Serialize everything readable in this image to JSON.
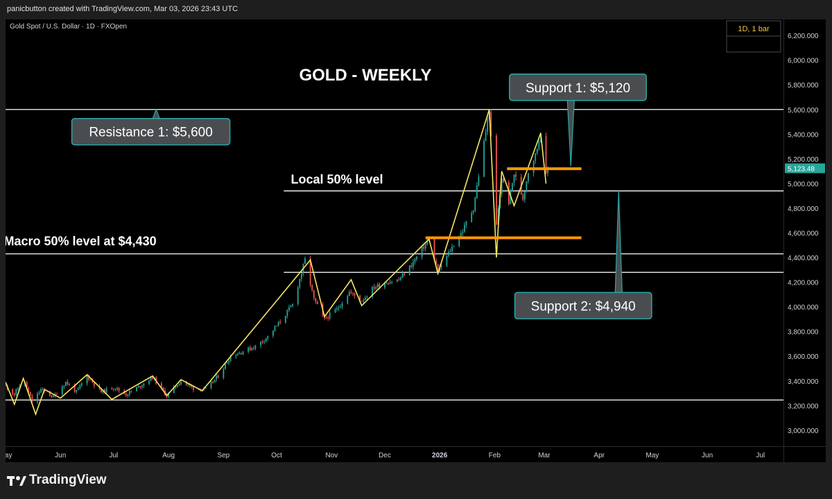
{
  "header": {
    "attribution": "panicbutton created with TradingView.com, Mar 03, 2026 23:43 UTC"
  },
  "footer": {
    "brand": "TradingView",
    "logo_icon": "tradingview-logo-icon"
  },
  "colors": {
    "background": "#000000",
    "line": "#f2f2f2",
    "level": "#ffffff",
    "candle_up": "#26a69a",
    "candle_down": "#ef5350",
    "zigzag": "#f5e663",
    "support_zone": "#ff9800",
    "callout_fill": "#4a4d50",
    "callout_border": "#2aa7a7",
    "price_badge": "#26a69a",
    "interval_text": "#f5c542"
  },
  "chart_data": {
    "type": "candlestick",
    "symbol_line": "Gold Spot / U.S. Dollar · 1D · FXOpen",
    "title": "GOLD  -  WEEKLY",
    "interval_label": "1D, 1 bar",
    "last_price": 5123.48,
    "last_price_label": "5,123.48",
    "y_axis": {
      "range": [
        2870,
        6330
      ],
      "ticks": [
        6200,
        6000,
        5800,
        5600,
        5400,
        5200,
        5000,
        4800,
        4600,
        4400,
        4200,
        4000,
        3800,
        3600,
        3400,
        3200,
        3000
      ],
      "tick_labels": [
        "6,200.000",
        "6,000.000",
        "5,800.000",
        "5,600.000",
        "5,400.000",
        "5,200.000",
        "5,000.000",
        "4,800.000",
        "4,600.000",
        "4,400.000",
        "4,200.000",
        "4,000.000",
        "3,800.000",
        "3,600.000",
        "3,400.000",
        "3,200.000",
        "3,000.000"
      ]
    },
    "x_axis": {
      "range": [
        "2025-05-01",
        "2026-07-14"
      ],
      "ticks": [
        {
          "date": "2025-05-01",
          "label": "May",
          "bold": false
        },
        {
          "date": "2025-06-01",
          "label": "Jun",
          "bold": false
        },
        {
          "date": "2025-07-01",
          "label": "Jul",
          "bold": false
        },
        {
          "date": "2025-08-01",
          "label": "Aug",
          "bold": false
        },
        {
          "date": "2025-09-01",
          "label": "Sep",
          "bold": false
        },
        {
          "date": "2025-10-01",
          "label": "Oct",
          "bold": false
        },
        {
          "date": "2025-11-01",
          "label": "Nov",
          "bold": false
        },
        {
          "date": "2025-12-01",
          "label": "Dec",
          "bold": false
        },
        {
          "date": "2026-01-01",
          "label": "2026",
          "bold": true
        },
        {
          "date": "2026-02-01",
          "label": "Feb",
          "bold": false
        },
        {
          "date": "2026-03-01",
          "label": "Mar",
          "bold": false
        },
        {
          "date": "2026-04-01",
          "label": "Apr",
          "bold": false
        },
        {
          "date": "2026-05-01",
          "label": "May",
          "bold": false
        },
        {
          "date": "2026-06-01",
          "label": "Jun",
          "bold": false
        },
        {
          "date": "2026-07-01",
          "label": "Jul",
          "bold": false
        }
      ]
    },
    "price_path": [
      {
        "date": "2025-05-01",
        "price": 3360
      },
      {
        "date": "2025-05-06",
        "price": 3290
      },
      {
        "date": "2025-05-11",
        "price": 3420
      },
      {
        "date": "2025-05-16",
        "price": 3230
      },
      {
        "date": "2025-05-21",
        "price": 3330
      },
      {
        "date": "2025-05-28",
        "price": 3270
      },
      {
        "date": "2025-06-04",
        "price": 3390
      },
      {
        "date": "2025-06-10",
        "price": 3310
      },
      {
        "date": "2025-06-16",
        "price": 3440
      },
      {
        "date": "2025-06-24",
        "price": 3310
      },
      {
        "date": "2025-07-01",
        "price": 3350
      },
      {
        "date": "2025-07-08",
        "price": 3290
      },
      {
        "date": "2025-07-15",
        "price": 3350
      },
      {
        "date": "2025-07-23",
        "price": 3430
      },
      {
        "date": "2025-07-31",
        "price": 3280
      },
      {
        "date": "2025-08-08",
        "price": 3400
      },
      {
        "date": "2025-08-15",
        "price": 3340
      },
      {
        "date": "2025-08-22",
        "price": 3330
      },
      {
        "date": "2025-08-29",
        "price": 3440
      },
      {
        "date": "2025-09-05",
        "price": 3600
      },
      {
        "date": "2025-09-12",
        "price": 3640
      },
      {
        "date": "2025-09-19",
        "price": 3680
      },
      {
        "date": "2025-09-26",
        "price": 3760
      },
      {
        "date": "2025-10-03",
        "price": 3880
      },
      {
        "date": "2025-10-10",
        "price": 4020
      },
      {
        "date": "2025-10-17",
        "price": 4380
      },
      {
        "date": "2025-10-22",
        "price": 4060
      },
      {
        "date": "2025-10-28",
        "price": 3900
      },
      {
        "date": "2025-11-04",
        "price": 3980
      },
      {
        "date": "2025-11-11",
        "price": 4120
      },
      {
        "date": "2025-11-18",
        "price": 4050
      },
      {
        "date": "2025-11-25",
        "price": 4160
      },
      {
        "date": "2025-12-02",
        "price": 4200
      },
      {
        "date": "2025-12-09",
        "price": 4220
      },
      {
        "date": "2025-12-16",
        "price": 4340
      },
      {
        "date": "2025-12-26",
        "price": 4550
      },
      {
        "date": "2025-12-31",
        "price": 4280
      },
      {
        "date": "2026-01-07",
        "price": 4460
      },
      {
        "date": "2026-01-14",
        "price": 4620
      },
      {
        "date": "2026-01-20",
        "price": 4800
      },
      {
        "date": "2026-01-29",
        "price": 5600
      },
      {
        "date": "2026-02-02",
        "price": 4660
      },
      {
        "date": "2026-02-05",
        "price": 5050
      },
      {
        "date": "2026-02-09",
        "price": 4850
      },
      {
        "date": "2026-02-12",
        "price": 5080
      },
      {
        "date": "2026-02-17",
        "price": 4880
      },
      {
        "date": "2026-02-20",
        "price": 5100
      },
      {
        "date": "2026-02-24",
        "price": 5230
      },
      {
        "date": "2026-02-27",
        "price": 5410
      },
      {
        "date": "2026-03-02",
        "price": 5060
      },
      {
        "date": "2026-03-03",
        "price": 5123
      }
    ],
    "zigzag_path": [
      {
        "date": "2025-05-01",
        "price": 3390
      },
      {
        "date": "2025-05-06",
        "price": 3210
      },
      {
        "date": "2025-05-11",
        "price": 3420
      },
      {
        "date": "2025-05-18",
        "price": 3130
      },
      {
        "date": "2025-05-23",
        "price": 3330
      },
      {
        "date": "2025-06-01",
        "price": 3260
      },
      {
        "date": "2025-06-16",
        "price": 3450
      },
      {
        "date": "2025-06-30",
        "price": 3250
      },
      {
        "date": "2025-07-23",
        "price": 3440
      },
      {
        "date": "2025-07-31",
        "price": 3280
      },
      {
        "date": "2025-08-08",
        "price": 3410
      },
      {
        "date": "2025-08-20",
        "price": 3320
      },
      {
        "date": "2025-10-20",
        "price": 4380
      },
      {
        "date": "2025-10-28",
        "price": 3920
      },
      {
        "date": "2025-11-12",
        "price": 4220
      },
      {
        "date": "2025-11-18",
        "price": 4010
      },
      {
        "date": "2025-12-26",
        "price": 4550
      },
      {
        "date": "2025-12-31",
        "price": 4270
      },
      {
        "date": "2026-01-29",
        "price": 5600
      },
      {
        "date": "2026-02-02",
        "price": 4400
      },
      {
        "date": "2026-02-05",
        "price": 5100
      },
      {
        "date": "2026-02-12",
        "price": 4820
      },
      {
        "date": "2026-02-27",
        "price": 5410
      },
      {
        "date": "2026-03-02",
        "price": 5000
      }
    ],
    "horizontal_levels": [
      {
        "name": "resistance-1-line",
        "price": 5600,
        "from": "2025-05-01",
        "to": "2026-07-14"
      },
      {
        "name": "local-50-line",
        "price": 4940,
        "from": "2025-10-05",
        "to": "2026-07-14"
      },
      {
        "name": "macro-50-line",
        "price": 4430,
        "from": "2025-05-01",
        "to": "2026-07-14"
      },
      {
        "name": "range-low-line",
        "price": 4280,
        "from": "2025-10-05",
        "to": "2026-07-14"
      },
      {
        "name": "base-line",
        "price": 3245,
        "from": "2025-05-01",
        "to": "2026-07-14"
      }
    ],
    "zones": [
      {
        "name": "support-zone-upper",
        "price": 5120,
        "from": "2026-02-08",
        "to": "2026-03-22"
      },
      {
        "name": "support-zone-lower",
        "price": 4560,
        "from": "2025-12-24",
        "to": "2026-03-22"
      }
    ],
    "text_labels": [
      {
        "name": "local-50-label",
        "text": "Local 50% level",
        "date": "2025-10-09",
        "price": 5000
      },
      {
        "name": "macro-50-label",
        "text": "Macro 50% level at $4,430",
        "date": "2025-04-30",
        "price": 4500
      }
    ],
    "callouts": [
      {
        "name": "resistance-1-callout",
        "text": "Resistance 1: $5,600",
        "box_date": "2025-07-22",
        "box_price": 5420,
        "tip_date": "2025-07-25",
        "tip_price": 5600
      },
      {
        "name": "support-1-callout",
        "text": "Support 1: $5,120",
        "box_date": "2026-03-20",
        "box_price": 5780,
        "tip_date": "2026-03-16",
        "tip_price": 5140
      },
      {
        "name": "support-2-callout",
        "text": "Support 2: $4,940",
        "box_date": "2026-03-23",
        "box_price": 4010,
        "tip_date": "2026-04-12",
        "tip_price": 4940
      }
    ]
  }
}
